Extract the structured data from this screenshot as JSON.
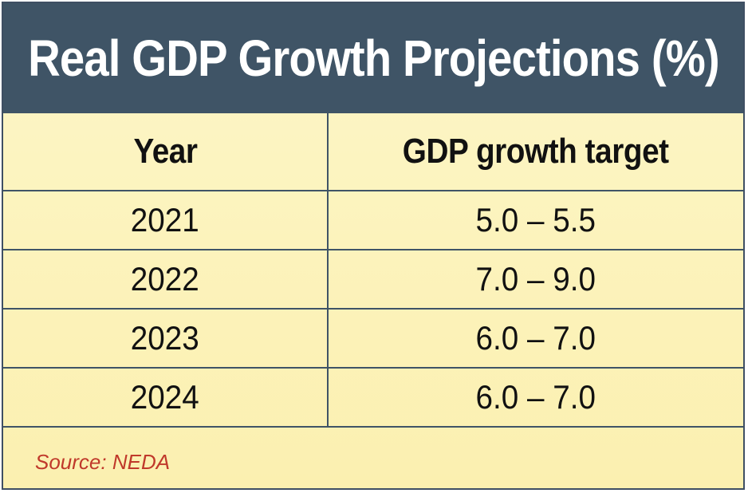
{
  "chart_data": {
    "type": "table",
    "title": "Real GDP Growth Projections (%)",
    "columns": [
      "Year",
      "GDP growth target"
    ],
    "rows": [
      {
        "year": "2021",
        "target": "5.0 – 5.5"
      },
      {
        "year": "2022",
        "target": "7.0 – 9.0"
      },
      {
        "year": "2023",
        "target": "6.0 – 7.0"
      },
      {
        "year": "2024",
        "target": "6.0 – 7.0"
      }
    ],
    "source": "Source: NEDA"
  },
  "colors": {
    "header_bg": "#3f5466",
    "body_bg": "#fbf0b0",
    "source_text": "#c0392b"
  }
}
